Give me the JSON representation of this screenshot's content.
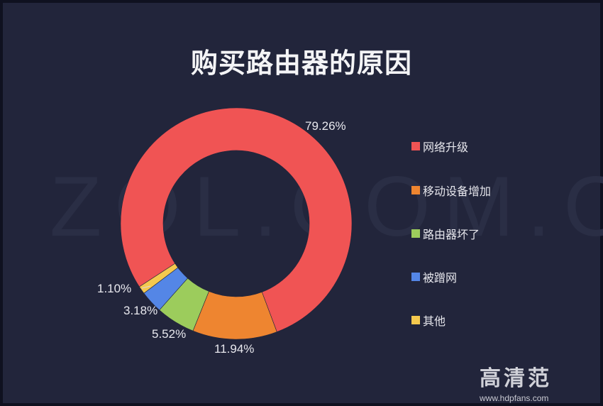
{
  "chart_data": {
    "type": "pie",
    "variant": "donut",
    "title": "购买路由器的原因",
    "categories": [
      "网络升级",
      "移动设备增加",
      "路由器坏了",
      "被蹭网",
      "其他"
    ],
    "values": [
      79.26,
      11.94,
      5.52,
      3.18,
      1.1
    ],
    "labels": [
      "79.26%",
      "11.94%",
      "5.52%",
      "3.18%",
      "1.10%"
    ],
    "colors": [
      "#f05454",
      "#ee8530",
      "#9ccc5c",
      "#5486e6",
      "#f5c94e"
    ],
    "legend_position": "right",
    "unit": "%"
  },
  "title": "购买路由器的原因",
  "watermark": "ZOL.COM.CN",
  "legend": [
    {
      "label": "网络升级",
      "color": "#f05454"
    },
    {
      "label": "移动设备增加",
      "color": "#ee8530"
    },
    {
      "label": "路由器坏了",
      "color": "#9ccc5c"
    },
    {
      "label": "被蹭网",
      "color": "#5486e6"
    },
    {
      "label": "其他",
      "color": "#f5c94e"
    }
  ],
  "slice_labels": {
    "s0": "79.26%",
    "s1": "11.94%",
    "s2": "5.52%",
    "s3": "3.18%",
    "s4": "1.10%"
  },
  "logo": {
    "name": "高清范",
    "url": "www.hdpfans.com"
  }
}
